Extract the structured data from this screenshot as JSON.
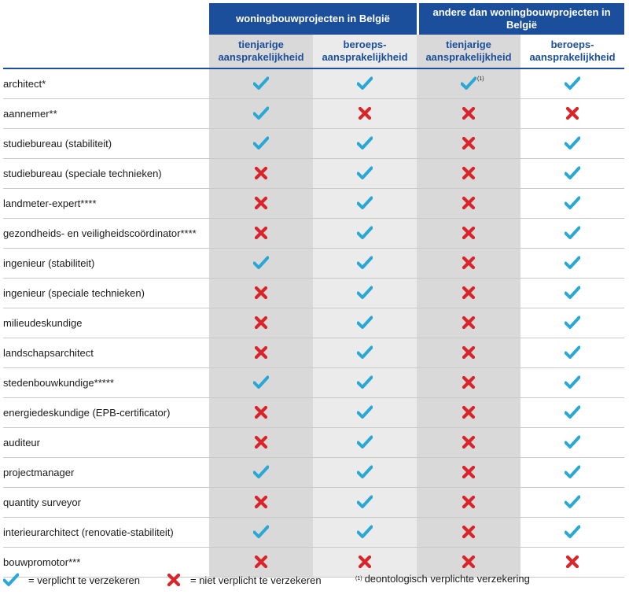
{
  "header": {
    "group1": "woningbouwprojecten in België",
    "group2": "andere dan woningbouwprojecten in België",
    "col_ten_a": "tienjarige aansprakelijkheid",
    "col_pro_a": "beroeps- aansprakelijkheid",
    "col_ten_b": "tienjarige aansprakelijkheid",
    "col_pro_b": "beroeps- aansprakelijkheid"
  },
  "rows": [
    {
      "label": "architect*",
      "marks": [
        true,
        true,
        true,
        true
      ],
      "note": "(1)"
    },
    {
      "label": "aannemer**",
      "marks": [
        true,
        false,
        false,
        false
      ]
    },
    {
      "label": "studiebureau (stabiliteit)",
      "marks": [
        true,
        true,
        false,
        true
      ]
    },
    {
      "label": "studiebureau (speciale technieken)",
      "marks": [
        false,
        true,
        false,
        true
      ]
    },
    {
      "label": "landmeter-expert****",
      "marks": [
        false,
        true,
        false,
        true
      ]
    },
    {
      "label": "gezondheids- en veiligheidscoördinator****",
      "marks": [
        false,
        true,
        false,
        true
      ]
    },
    {
      "label": "ingenieur (stabiliteit)",
      "marks": [
        true,
        true,
        false,
        true
      ]
    },
    {
      "label": "ingenieur (speciale technieken)",
      "marks": [
        false,
        true,
        false,
        true
      ]
    },
    {
      "label": "milieudeskundige",
      "marks": [
        false,
        true,
        false,
        true
      ]
    },
    {
      "label": "landschapsarchitect",
      "marks": [
        false,
        true,
        false,
        true
      ]
    },
    {
      "label": "stedenbouwkundige*****",
      "marks": [
        true,
        true,
        false,
        true
      ]
    },
    {
      "label": "energiedeskundige (EPB-certificator)",
      "marks": [
        false,
        true,
        false,
        true
      ]
    },
    {
      "label": "auditeur",
      "marks": [
        false,
        true,
        false,
        true
      ]
    },
    {
      "label": "projectmanager",
      "marks": [
        true,
        true,
        false,
        true
      ]
    },
    {
      "label": "quantity surveyor",
      "marks": [
        false,
        true,
        false,
        true
      ]
    },
    {
      "label": "interieurarchitect (renovatie-stabiliteit)",
      "marks": [
        true,
        true,
        false,
        true
      ]
    },
    {
      "label": "bouwpromotor***",
      "marks": [
        false,
        false,
        false,
        false
      ]
    }
  ],
  "legend": {
    "check_text": "= verplicht te verzekeren",
    "cross_text": "= niet verplicht te verzekeren",
    "note_sup": "(1)",
    "note_text": "deontologisch verplichte verzekering"
  },
  "colors": {
    "header_blue": "#1b4e9b",
    "check": "#29a8d6",
    "cross": "#d9252a",
    "shade_dark": "#d9d9d9",
    "shade_light": "#ebebeb"
  },
  "icons": {
    "check": "check-icon",
    "cross": "cross-icon"
  }
}
